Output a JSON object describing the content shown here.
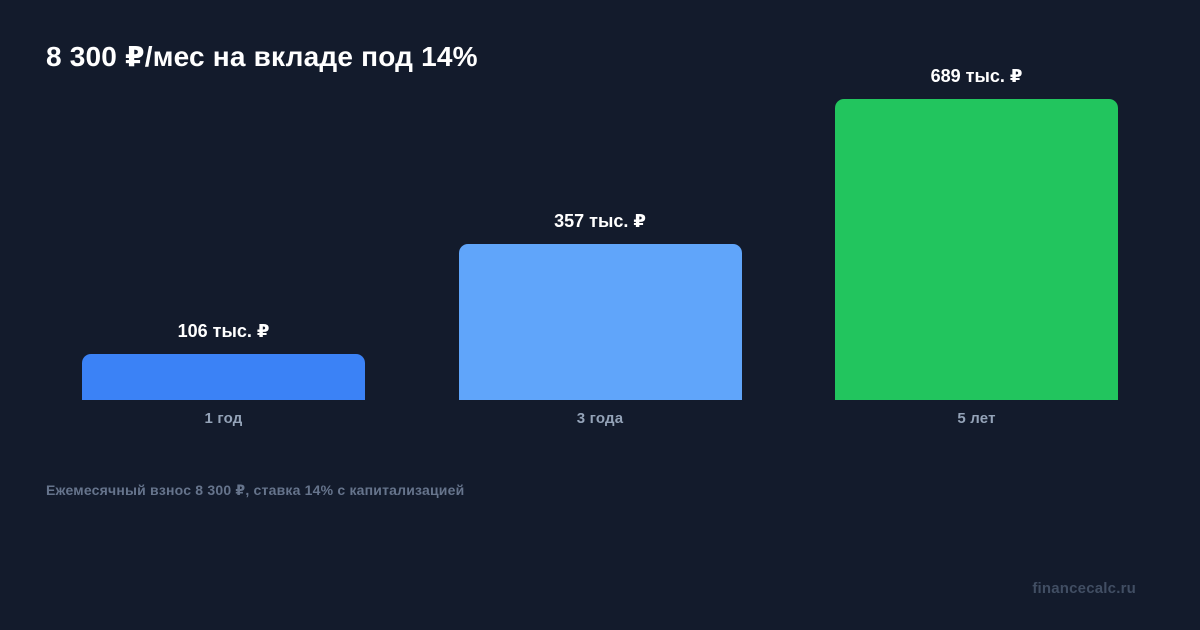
{
  "title": "8 300 ₽/мес на вкладе под 14%",
  "footnote": "Ежемесячный взнос 8 300 ₽, ставка 14% с капитализацией",
  "watermark": "financecalc.ru",
  "colors": {
    "background": "#131b2c",
    "title_text": "#ffffff",
    "value_text": "#ffffff",
    "category_text": "#94a3b8",
    "footnote_text": "#66748c",
    "watermark_text": "#414e63"
  },
  "chart_data": {
    "type": "bar",
    "title": "8 300 ₽/мес на вкладе под 14%",
    "categories": [
      "1 год",
      "3 года",
      "5 лет"
    ],
    "values": [
      106,
      357,
      689
    ],
    "value_labels": [
      "106 тыс. ₽",
      "357 тыс. ₽",
      "689 тыс. ₽"
    ],
    "unit": "тыс. ₽",
    "xlabel": "",
    "ylabel": "",
    "ylim": [
      0,
      689
    ],
    "grid": false,
    "legend": false,
    "bar_colors": [
      "#3b82f6",
      "#60a5fa",
      "#22c55e"
    ],
    "annotation": "Ежемесячный взнос 8 300 ₽, ставка 14% с капитализацией"
  }
}
